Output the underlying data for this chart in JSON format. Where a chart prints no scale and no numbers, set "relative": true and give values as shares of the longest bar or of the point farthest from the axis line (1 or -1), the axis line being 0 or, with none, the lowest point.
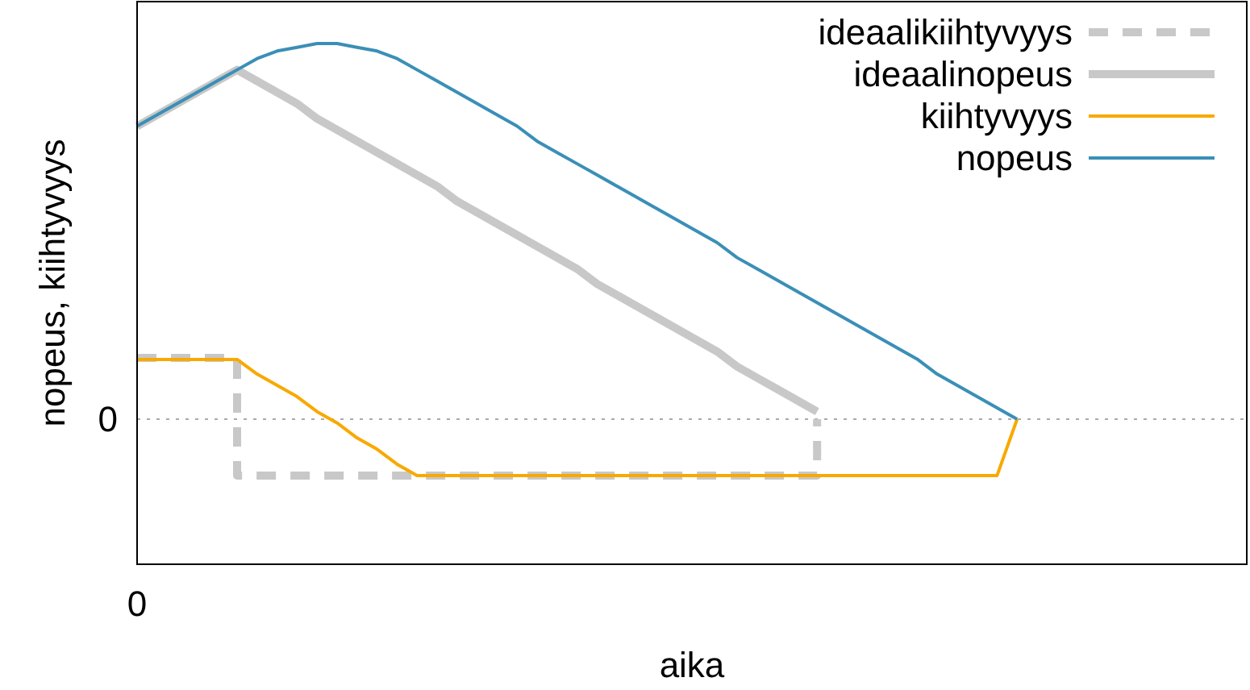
{
  "chart_data": {
    "type": "line",
    "relative": true,
    "xlabel": "aika",
    "ylabel": "nopeus, kiihtyvyys",
    "legend": "top right",
    "annotations": [
      "0"
    ],
    "categories": [
      null,
      null,
      null,
      null,
      null,
      null,
      null,
      null,
      null,
      null,
      null,
      null,
      null,
      null,
      null,
      null,
      null,
      null,
      null,
      null,
      null,
      null,
      null,
      null,
      null,
      null,
      null,
      null,
      null,
      null,
      null,
      null,
      null,
      null,
      null,
      null,
      null,
      null,
      null,
      null,
      null,
      null,
      null,
      null,
      null,
      null,
      null,
      null,
      null,
      null,
      null,
      null,
      null,
      null,
      null,
      null
    ],
    "ref_lines": [
      {
        "axis": "y",
        "value": 0,
        "label": "0",
        "color": "#aaaaaa",
        "line_style": "dotted"
      }
    ],
    "series": [
      {
        "name": "ideaalikiihtyvyys",
        "type": "step",
        "color": "#c8c8c8",
        "line_style": "dashed",
        "values": [
          0.163,
          0.163,
          0.163,
          0.163,
          0.163,
          -0.15,
          -0.15,
          -0.15,
          -0.15,
          -0.15,
          -0.15,
          -0.15,
          -0.15,
          -0.15,
          -0.15,
          -0.15,
          -0.15,
          -0.15,
          -0.15,
          -0.15,
          -0.15,
          -0.15,
          -0.15,
          -0.15,
          -0.15,
          -0.15,
          -0.15,
          -0.15,
          -0.15,
          -0.15,
          -0.15,
          -0.15,
          -0.15,
          -0.15,
          0,
          null,
          null,
          null,
          null,
          null,
          null,
          null,
          null,
          null,
          null,
          null,
          null,
          null,
          null,
          null,
          null,
          null,
          null,
          null,
          null,
          null
        ]
      },
      {
        "name": "ideaalinopeus",
        "color": "#c8c8c8",
        "line_style": "solid",
        "values": [
          0.78,
          0.81,
          0.84,
          0.87,
          0.9,
          0.93,
          0.9,
          0.87,
          0.84,
          0.8,
          0.77,
          0.74,
          0.71,
          0.68,
          0.65,
          0.62,
          0.58,
          0.55,
          0.52,
          0.49,
          0.46,
          0.43,
          0.4,
          0.36,
          0.33,
          0.3,
          0.27,
          0.24,
          0.21,
          0.18,
          0.14,
          0.11,
          0.08,
          0.05,
          0.02,
          null,
          null,
          null,
          null,
          null,
          null,
          null,
          null,
          null,
          null,
          null,
          null,
          null,
          null,
          null,
          null,
          null,
          null,
          null,
          null,
          null
        ]
      },
      {
        "name": "kiihtyvyys",
        "color": "#f8a900",
        "line_style": "solid",
        "values": [
          0.159,
          0.159,
          0.159,
          0.159,
          0.159,
          0.159,
          0.12,
          0.09,
          0.06,
          0.02,
          -0.01,
          -0.05,
          -0.08,
          -0.12,
          -0.15,
          -0.15,
          -0.15,
          -0.15,
          -0.15,
          -0.15,
          -0.15,
          -0.15,
          -0.15,
          -0.15,
          -0.15,
          -0.15,
          -0.15,
          -0.15,
          -0.15,
          -0.15,
          -0.15,
          -0.15,
          -0.15,
          -0.15,
          -0.15,
          -0.15,
          -0.15,
          -0.15,
          -0.15,
          -0.15,
          -0.15,
          -0.15,
          -0.15,
          -0.15,
          0,
          null,
          null,
          null,
          null,
          null,
          null,
          null,
          null,
          null,
          null,
          null
        ]
      },
      {
        "name": "nopeus",
        "color": "#3a8fb7",
        "line_style": "solid",
        "values": [
          0.78,
          0.81,
          0.84,
          0.87,
          0.9,
          0.93,
          0.96,
          0.98,
          0.99,
          1,
          1,
          0.99,
          0.98,
          0.96,
          0.93,
          0.9,
          0.87,
          0.84,
          0.81,
          0.78,
          0.74,
          0.71,
          0.68,
          0.65,
          0.62,
          0.59,
          0.56,
          0.53,
          0.5,
          0.47,
          0.43,
          0.4,
          0.37,
          0.34,
          0.31,
          0.28,
          0.25,
          0.22,
          0.19,
          0.16,
          0.12,
          0.09,
          0.06,
          0.03,
          0,
          null,
          null,
          null,
          null,
          null,
          null,
          null,
          null,
          null,
          null,
          null
        ]
      }
    ]
  }
}
